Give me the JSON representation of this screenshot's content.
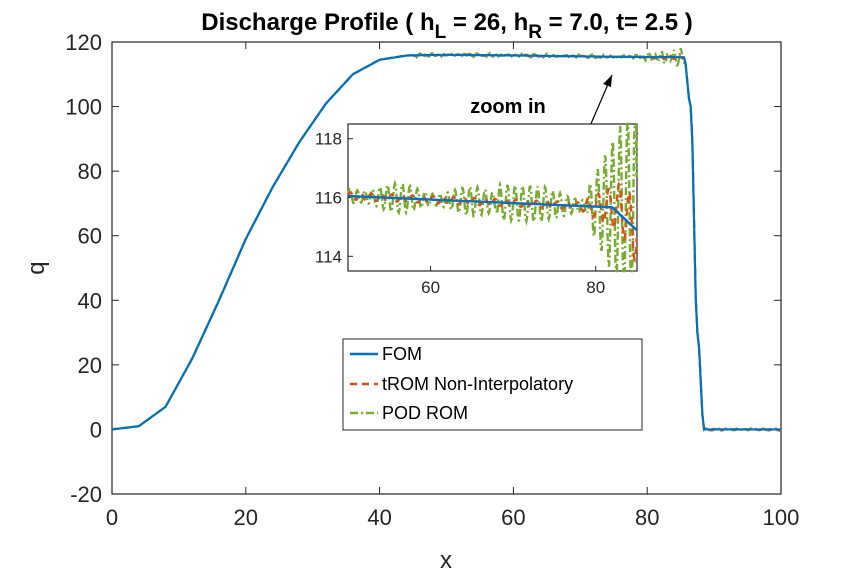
{
  "chart_data": {
    "type": "line",
    "title": {
      "prefix": "Discharge Profile ( h",
      "sub_left": "L",
      "mid": " = 26, h",
      "sub_right": "R",
      "suffix": " = 7.0, t= 2.5 )"
    },
    "xlabel": "x",
    "ylabel": "q",
    "xlim": [
      0,
      100
    ],
    "ylim": [
      -20,
      120
    ],
    "xticks": [
      "0",
      "20",
      "40",
      "60",
      "80",
      "100"
    ],
    "yticks": [
      "-20",
      "0",
      "20",
      "40",
      "60",
      "80",
      "100",
      "120"
    ],
    "colors": {
      "FOM": "#0072BD",
      "tROM": "#D95319",
      "POD": "#77AC30"
    },
    "series": [
      {
        "name": "FOM",
        "style": "solid",
        "profile": {
          "x": [
            0,
            4,
            8,
            12,
            16,
            20,
            24,
            28,
            32,
            36,
            40,
            44,
            48,
            85.5,
            86.5,
            87.5,
            88.5,
            100
          ],
          "y": [
            0,
            1,
            7,
            22,
            40,
            59,
            75,
            89,
            101,
            110,
            114.5,
            115.8,
            116,
            115.3,
            100,
            30,
            0,
            0
          ]
        }
      },
      {
        "name": "tROM Non-Interpolatory",
        "style": "dashed"
      },
      {
        "name": "POD ROM",
        "style": "dashdot"
      }
    ],
    "inset": {
      "annotation": "zoom in",
      "xlim": [
        50,
        85
      ],
      "ylim": [
        113.5,
        118.5
      ],
      "xticks": [
        "60",
        "80"
      ],
      "yticks": [
        "114",
        "116",
        "118"
      ]
    },
    "legend": {
      "position": "lower-center",
      "entries": [
        "FOM",
        "tROM Non-Interpolatory",
        "POD ROM"
      ]
    }
  }
}
